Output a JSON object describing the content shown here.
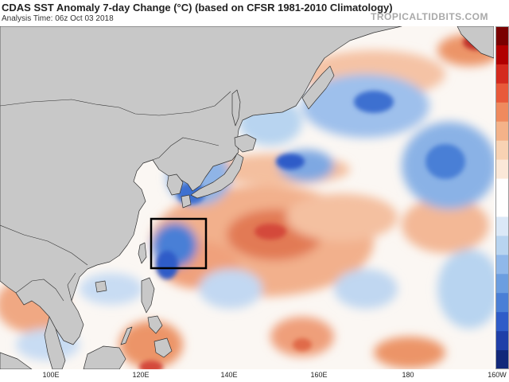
{
  "title": "CDAS SST Anomaly 7-day Change (°C) (based on CFSR 1981-2010 Climatology)",
  "subtitle": "Analysis Time: 06z Oct 03 2018",
  "brand": "TROPICALTIDBITS.COM",
  "x_axis_labels": [
    "100E",
    "120E",
    "140E",
    "160E",
    "180",
    "160W"
  ],
  "colors": {
    "land": "#c8c8c8",
    "ocean_neutral": "#fbf7f3",
    "warm_light": "#f7c8a8",
    "warm": "#ec9468",
    "warm_strong": "#d4483a",
    "cool_light": "#b8d4f0",
    "cool": "#6c9ee0",
    "cool_strong": "#2f5cc8",
    "highlight_box": "#000000"
  },
  "colorbar": [
    "#7a0000",
    "#b10000",
    "#d42a1e",
    "#e8593a",
    "#ef8a5e",
    "#f4b289",
    "#f8d2b3",
    "#fbe8d8",
    "#ffffff",
    "#ffffff",
    "#dbe8f7",
    "#b8d4f0",
    "#90b8ea",
    "#6c9ee0",
    "#4a7fd6",
    "#2f5cc8",
    "#1f3fa8",
    "#12287a"
  ]
}
